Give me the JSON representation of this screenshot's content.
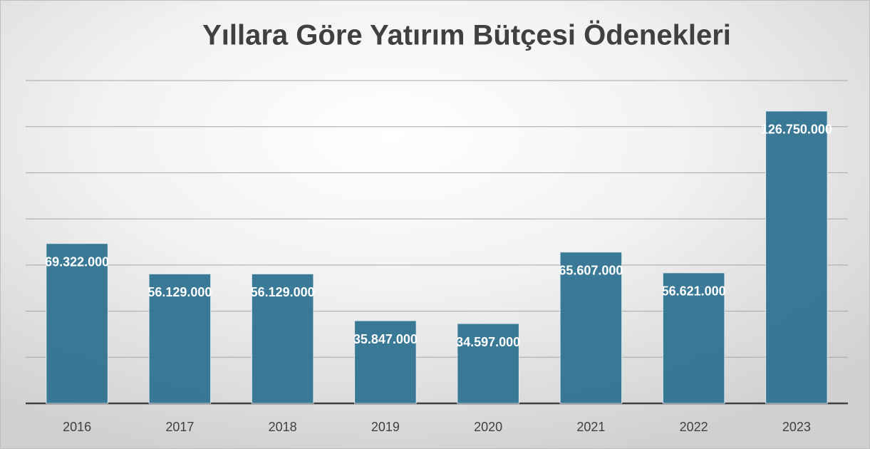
{
  "chart_data": {
    "type": "bar",
    "title": "Yıllara Göre Yatırım Bütçesi Ödenekleri",
    "categories": [
      "2016",
      "2017",
      "2018",
      "2019",
      "2020",
      "2021",
      "2022",
      "2023"
    ],
    "values": [
      69322000,
      56129000,
      56129000,
      35847000,
      34597000,
      65607000,
      56621000,
      126750000
    ],
    "value_labels": [
      "69.322.000",
      "56.129.000",
      "56.129.000",
      "35.847.000",
      "34.597.000",
      "65.607.000",
      "56.621.000",
      "126.750.000"
    ],
    "color": "#2f7391",
    "ylim": [
      0,
      140000000
    ],
    "yticks": [
      0,
      20000000,
      40000000,
      60000000,
      80000000,
      100000000,
      120000000,
      140000000
    ],
    "grid": true
  }
}
